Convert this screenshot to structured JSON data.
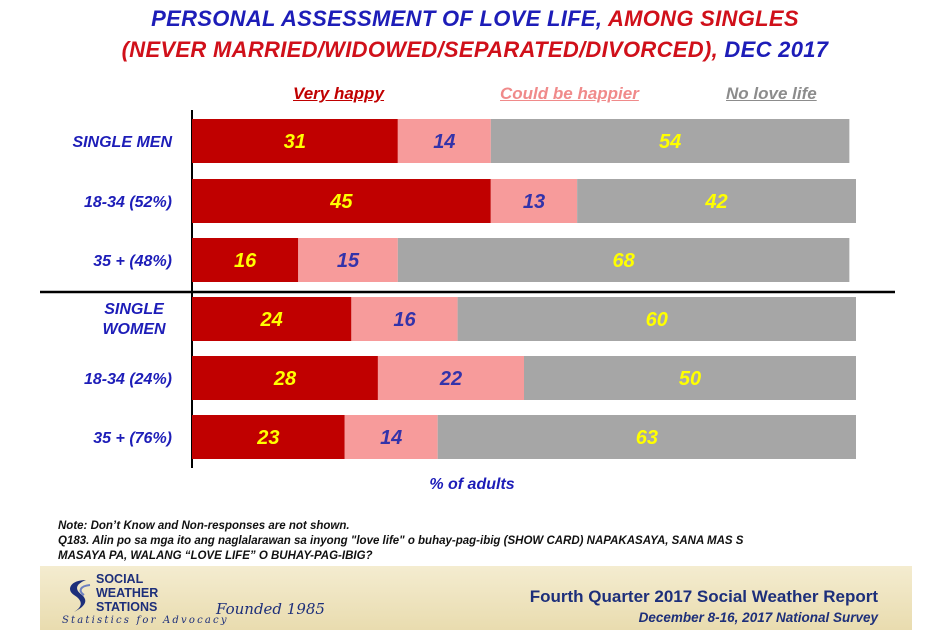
{
  "title": {
    "line1_blue": "PERSONAL ASSESSMENT OF LOVE LIFE,",
    "line1_red": "AMONG SINGLES",
    "line2_red": "(NEVER MARRIED/WIDOWED/SEPARATED/DIVORCED),",
    "line2_blue": "DEC 2017"
  },
  "colors": {
    "very_happy": "#c00000",
    "could_be_happier": "#f79b9b",
    "no_love_life": "#a6a6a6",
    "label_dark": "#1d1db8",
    "value_yellow": "#ffff00",
    "value_blue": "#3333aa"
  },
  "chart_data": {
    "type": "bar",
    "orientation": "horizontal",
    "stacked": true,
    "xlabel": "% of adults",
    "categories": [
      "SINGLE MEN",
      "18-34 (52%)",
      "35 + (48%)",
      "SINGLE WOMEN",
      "18-34 (24%)",
      "35 + (76%)"
    ],
    "series": [
      {
        "name": "Very happy",
        "values": [
          31,
          45,
          16,
          24,
          28,
          23
        ]
      },
      {
        "name": "Could be happier",
        "values": [
          14,
          13,
          15,
          16,
          22,
          14
        ]
      },
      {
        "name": "No love life",
        "values": [
          54,
          42,
          68,
          60,
          50,
          63
        ]
      }
    ],
    "xlim": [
      0,
      100
    ],
    "legend": "top",
    "grid": false
  },
  "notes": {
    "line1": "Note: Don’t Know and Non-responses are not shown.",
    "line2": "Q183. Alin po sa mga ito ang naglalarawan sa inyong \"love life\"  o buhay-pag-ibig  (SHOW CARD) NAPAKASAYA, SANA MAS S",
    "line3": "MASAYA PA, WALANG “LOVE LIFE” O BUHAY-PAG-IBIG?"
  },
  "footer": {
    "logo_line1": "SOCIAL",
    "logo_line2": "WEATHER",
    "logo_line3": "STATIONS",
    "founded": "Founded 1985",
    "tagline": "Statistics for Advocacy",
    "report_title": "Fourth Quarter 2017 Social Weather Report",
    "report_subtitle": "December 8-16, 2017 National Survey"
  }
}
